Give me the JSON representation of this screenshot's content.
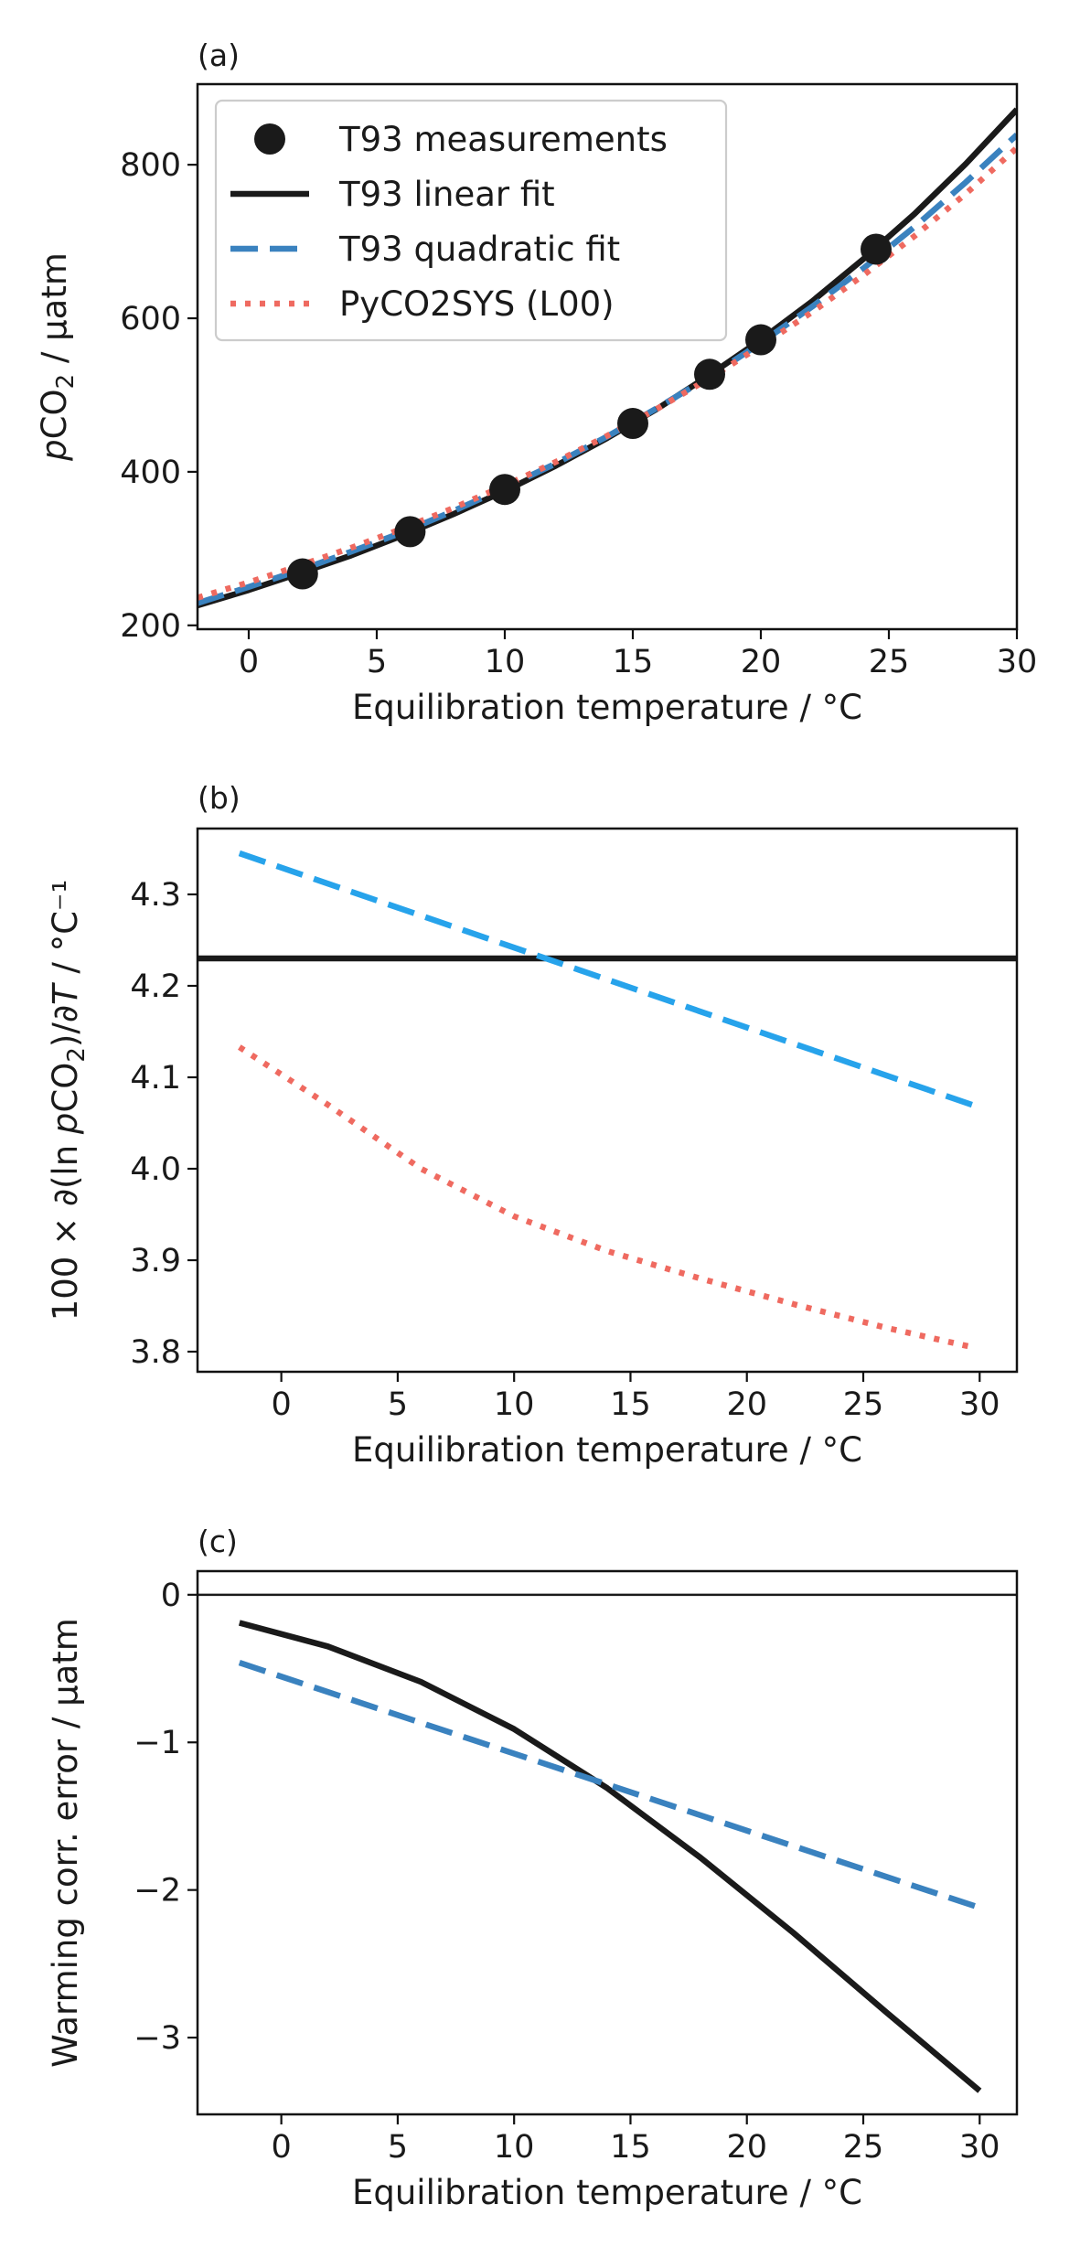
{
  "colors": {
    "black": "#1a1a1a",
    "blue_dash": "#3a82bf",
    "blue_dash_b": "#27a3eb",
    "red_dot": "#ef6a60",
    "frame": "#111111"
  },
  "chart_data": [
    {
      "panel_label": "(a)",
      "type": "line",
      "xlabel": "Equilibration temperature / °C",
      "ylabel_parts": [
        "p",
        "CO",
        "2",
        " / µatm"
      ],
      "xlim": [
        -2,
        30
      ],
      "ylim": [
        195,
        905
      ],
      "xticks": [
        0,
        5,
        10,
        15,
        20,
        25,
        30
      ],
      "xtick_labels": [
        "0",
        "5",
        "10",
        "15",
        "20",
        "25",
        "30"
      ],
      "yticks": [
        200,
        400,
        600,
        800
      ],
      "ytick_labels": [
        "200",
        "400",
        "600",
        "800"
      ],
      "grid": false,
      "legend_position": "top-left",
      "legend": [
        {
          "label": "T93 measurements",
          "style": "marker",
          "color": "#1a1a1a"
        },
        {
          "label": "T93 linear fit",
          "style": "solid",
          "color": "#1a1a1a"
        },
        {
          "label": "T93 quadratic fit",
          "style": "dashed",
          "color": "#3a82bf"
        },
        {
          "label": "PyCO2SYS (L00)",
          "style": "dotted",
          "color": "#ef6a60"
        }
      ],
      "scatter": {
        "name": "T93 measurements",
        "x": [
          2.1,
          6.3,
          10.0,
          15.0,
          18.0,
          20.0,
          24.5
        ],
        "y": [
          267,
          322,
          377,
          463,
          527,
          572,
          690
        ]
      },
      "series": [
        {
          "name": "T93 linear fit",
          "style": "solid",
          "color": "#1a1a1a",
          "x": [
            -2,
            0,
            2,
            4,
            6,
            8,
            10,
            12,
            14,
            16,
            18,
            20,
            22,
            24,
            26,
            28,
            30
          ],
          "y": [
            226,
            246,
            268,
            291,
            317,
            345,
            375,
            408,
            444,
            483,
            526,
            572,
            622,
            677,
            736,
            801,
            872
          ]
        },
        {
          "name": "T93 quadratic fit",
          "style": "dashed",
          "color": "#3a82bf",
          "x": [
            -2,
            0,
            2,
            4,
            6,
            8,
            10,
            12,
            14,
            16,
            18,
            20,
            22,
            24,
            26,
            28,
            30
          ],
          "y": [
            229,
            250,
            272,
            296,
            321,
            349,
            379,
            411,
            446,
            484,
            524,
            568,
            615,
            665,
            719,
            777,
            839
          ]
        },
        {
          "name": "PyCO2SYS (L00)",
          "style": "dotted",
          "color": "#ef6a60",
          "x": [
            -2,
            0,
            2,
            4,
            6,
            8,
            10,
            12,
            14,
            16,
            18,
            20,
            22,
            24,
            26,
            28,
            30
          ],
          "y": [
            236,
            256,
            278,
            301,
            326,
            353,
            382,
            413,
            447,
            483,
            522,
            564,
            608,
            656,
            707,
            762,
            822
          ]
        }
      ]
    },
    {
      "panel_label": "(b)",
      "type": "line",
      "xlabel": "Equilibration temperature / °C",
      "ylabel_parts": [
        "100 × ∂(ln ",
        "p",
        "CO",
        "2",
        ")/∂",
        "T",
        " / °C⁻¹"
      ],
      "xlim": [
        -3.6,
        31.6
      ],
      "ylim": [
        3.778,
        4.372
      ],
      "xticks": [
        0,
        5,
        10,
        15,
        20,
        25,
        30
      ],
      "xtick_labels": [
        "0",
        "5",
        "10",
        "15",
        "20",
        "25",
        "30"
      ],
      "yticks": [
        3.8,
        3.9,
        4.0,
        4.1,
        4.2,
        4.3
      ],
      "ytick_labels": [
        "3.8",
        "3.9",
        "4.0",
        "4.1",
        "4.2",
        "4.3"
      ],
      "grid": false,
      "series": [
        {
          "name": "T93 linear fit",
          "style": "solid",
          "color": "#1a1a1a",
          "x": [
            -3.6,
            31.6
          ],
          "y": [
            4.23,
            4.23
          ]
        },
        {
          "name": "T93 quadratic fit",
          "style": "dashed",
          "color": "#27a3eb",
          "x": [
            -1.8,
            30
          ],
          "y": [
            4.345,
            4.067
          ]
        },
        {
          "name": "PyCO2SYS (L00)",
          "style": "dotted",
          "color": "#ef6a60",
          "x": [
            -1.8,
            2,
            6,
            10,
            14,
            18,
            22,
            26,
            29.5
          ],
          "y": [
            4.133,
            4.07,
            4.0,
            3.948,
            3.91,
            3.88,
            3.852,
            3.826,
            3.806
          ]
        }
      ]
    },
    {
      "panel_label": "(c)",
      "type": "line",
      "xlabel": "Equilibration temperature / °C",
      "ylabel_parts": [
        "Warming corr. error / µatm"
      ],
      "xlim": [
        -3.6,
        31.6
      ],
      "ylim": [
        -3.52,
        0.16
      ],
      "xticks": [
        0,
        5,
        10,
        15,
        20,
        25,
        30
      ],
      "xtick_labels": [
        "0",
        "5",
        "10",
        "15",
        "20",
        "25",
        "30"
      ],
      "yticks": [
        -3,
        -2,
        -1,
        0
      ],
      "ytick_labels": [
        "−3",
        "−2",
        "−1",
        "0"
      ],
      "grid": false,
      "hline": 0,
      "series": [
        {
          "name": "T93 linear fit",
          "style": "solid",
          "color": "#1a1a1a",
          "x": [
            -1.8,
            2,
            6,
            10,
            14,
            18,
            22,
            26,
            30
          ],
          "y": [
            -0.19,
            -0.35,
            -0.59,
            -0.91,
            -1.31,
            -1.78,
            -2.29,
            -2.83,
            -3.36
          ]
        },
        {
          "name": "T93 quadratic fit",
          "style": "dashed",
          "color": "#3a82bf",
          "x": [
            -1.8,
            30
          ],
          "y": [
            -0.46,
            -2.12
          ]
        }
      ]
    }
  ]
}
